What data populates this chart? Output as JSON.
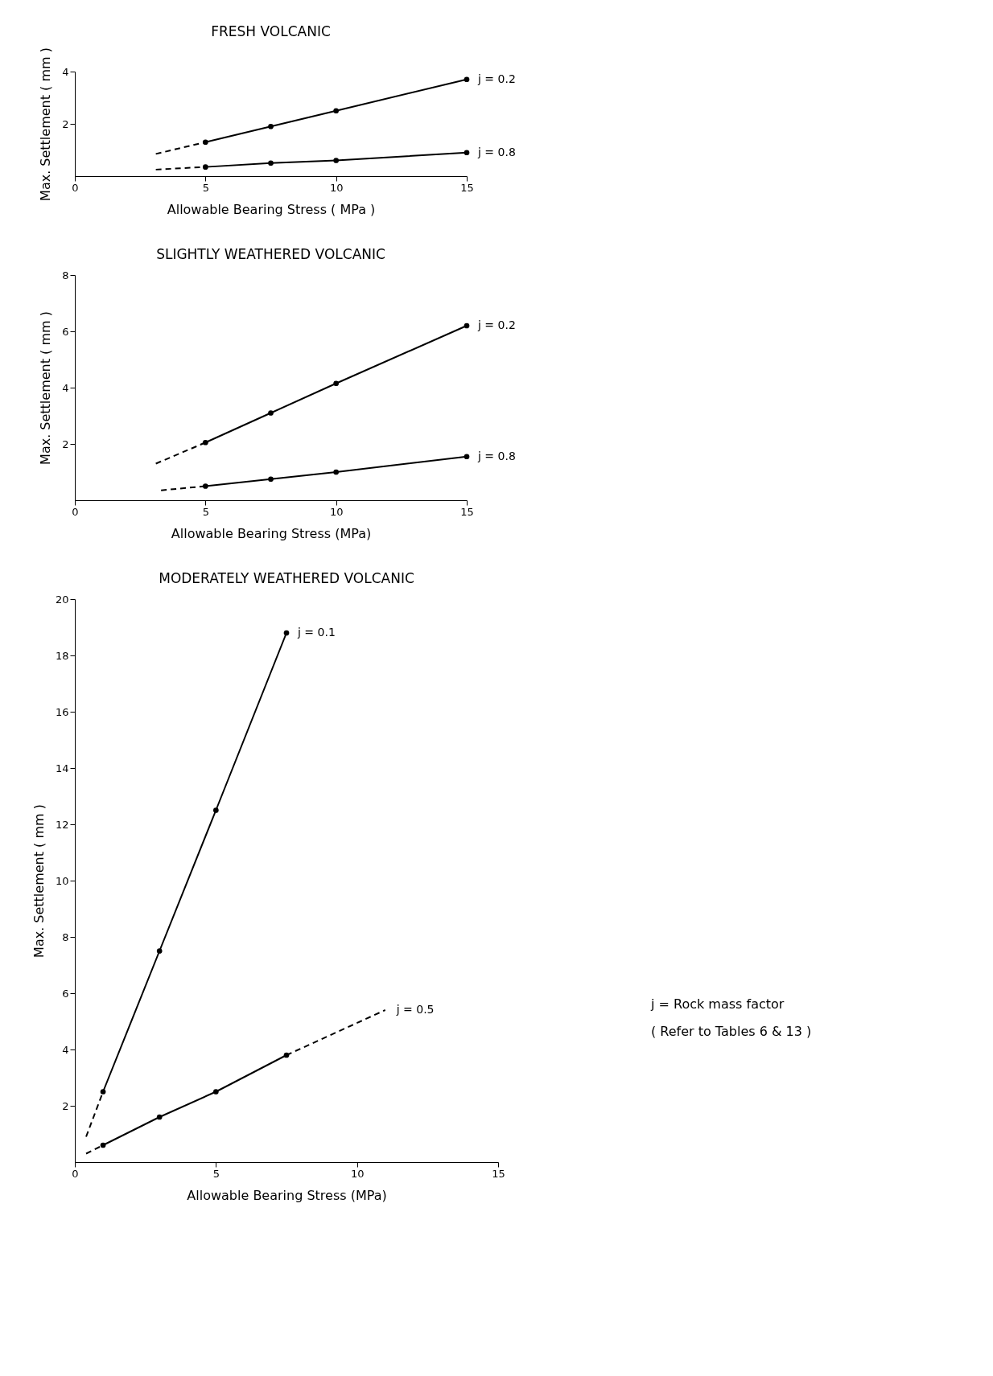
{
  "chart_data": [
    {
      "type": "line",
      "title": "FRESH VOLCANIC",
      "xlabel": "Allowable Bearing Stress ( MPa )",
      "ylabel": "Max. Settlement ( mm )",
      "xlim": [
        0,
        15
      ],
      "xticks": [
        0,
        5,
        10,
        15
      ],
      "ylim": [
        0,
        4
      ],
      "yticks": [
        2,
        4
      ],
      "grid": false,
      "series": [
        {
          "name": "j = 0.2",
          "color": "#000000",
          "x": [
            5,
            7.5,
            10,
            15
          ],
          "values": [
            1.3,
            1.9,
            2.5,
            3.7
          ],
          "marker": "circle",
          "line_style": "solid"
        },
        {
          "name": "j = 0.8",
          "color": "#000000",
          "x": [
            5,
            7.5,
            10,
            15
          ],
          "values": [
            0.35,
            0.5,
            0.6,
            0.9
          ],
          "marker": "circle",
          "line_style": "solid"
        },
        {
          "color": "#000000",
          "x": [
            3.1,
            5
          ],
          "values": [
            0.85,
            1.3
          ],
          "marker": "none",
          "line_style": "dashed"
        },
        {
          "color": "#000000",
          "x": [
            3.1,
            5
          ],
          "values": [
            0.25,
            0.35
          ],
          "marker": "none",
          "line_style": "dashed"
        }
      ]
    },
    {
      "type": "line",
      "title": "SLIGHTLY WEATHERED VOLCANIC",
      "xlabel": "Allowable Bearing Stress (MPa)",
      "ylabel": "Max. Settlement ( mm )",
      "xlim": [
        0,
        15
      ],
      "xticks": [
        0,
        5,
        10,
        15
      ],
      "ylim": [
        0,
        8
      ],
      "yticks": [
        2,
        4,
        6,
        8
      ],
      "grid": false,
      "series": [
        {
          "name": "j = 0.2",
          "color": "#000000",
          "x": [
            5,
            7.5,
            10,
            15
          ],
          "values": [
            2.05,
            3.1,
            4.15,
            6.2
          ],
          "marker": "circle",
          "line_style": "solid"
        },
        {
          "name": "j = 0.8",
          "color": "#000000",
          "x": [
            5,
            7.5,
            10,
            15
          ],
          "values": [
            0.5,
            0.75,
            1.0,
            1.55
          ],
          "marker": "circle",
          "line_style": "solid"
        },
        {
          "color": "#000000",
          "x": [
            3.1,
            5
          ],
          "values": [
            1.3,
            2.05
          ],
          "marker": "none",
          "line_style": "dashed"
        },
        {
          "color": "#000000",
          "x": [
            3.3,
            5
          ],
          "values": [
            0.35,
            0.5
          ],
          "marker": "none",
          "line_style": "dashed"
        }
      ]
    },
    {
      "type": "line",
      "title": "MODERATELY WEATHERED VOLCANIC",
      "xlabel": "Allowable Bearing Stress (MPa)",
      "ylabel": "Max. Settlement ( mm )",
      "xlim": [
        0,
        15
      ],
      "xticks": [
        0,
        5,
        10,
        15
      ],
      "ylim": [
        0,
        20
      ],
      "yticks": [
        2,
        4,
        6,
        8,
        10,
        12,
        14,
        16,
        18,
        20
      ],
      "grid": false,
      "series": [
        {
          "name": "j = 0.1",
          "color": "#000000",
          "x": [
            1,
            3,
            5,
            7.5
          ],
          "values": [
            2.5,
            7.5,
            12.5,
            18.8
          ],
          "marker": "circle",
          "line_style": "solid"
        },
        {
          "color": "#000000",
          "x": [
            1,
            3,
            5,
            7.5
          ],
          "values": [
            0.6,
            1.6,
            2.5,
            3.8
          ],
          "marker": "circle",
          "line_style": "solid"
        },
        {
          "color": "#000000",
          "x": [
            0.4,
            1
          ],
          "values": [
            0.9,
            2.5
          ],
          "marker": "none",
          "line_style": "dashed"
        },
        {
          "color": "#000000",
          "x": [
            0.4,
            1
          ],
          "values": [
            0.3,
            0.6
          ],
          "marker": "none",
          "line_style": "dashed"
        },
        {
          "color": "#000000",
          "x": [
            7.5,
            11
          ],
          "values": [
            3.8,
            5.4
          ],
          "marker": "none",
          "line_style": "dashed"
        }
      ],
      "annotations": [
        {
          "text": "j = 0.5",
          "x": 11,
          "y": 5.4
        },
        "j = Rock mass factor",
        "( Refer to Tables 6 & 13 )"
      ]
    }
  ]
}
